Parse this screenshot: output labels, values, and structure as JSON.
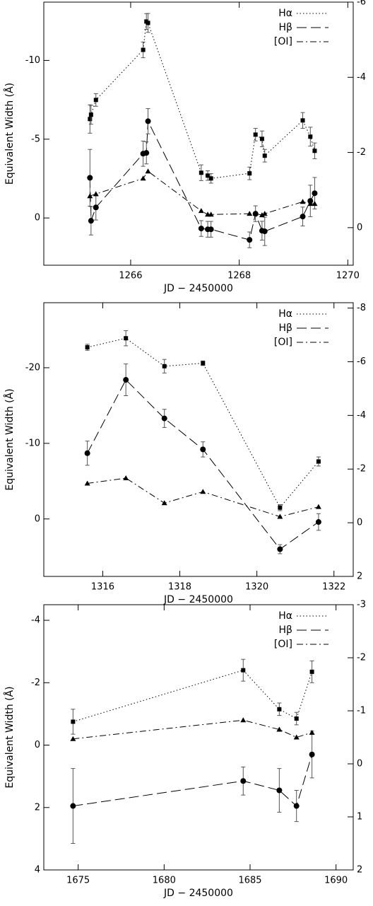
{
  "chart_data": [
    {
      "type": "scatter",
      "xlabel": "JD − 2450000",
      "ylabel": "Equivalent Width (Å)",
      "xlim": [
        1264.4,
        1270.1
      ],
      "xticks": [
        1266,
        1268,
        1270
      ],
      "ylim": [
        -13.7,
        3
      ],
      "y_inverted": true,
      "yticks": [
        -10,
        -5,
        0
      ],
      "y2lim": [
        -6,
        1
      ],
      "y2_inverted": true,
      "y2ticks": [
        -6,
        -4,
        -2,
        0
      ],
      "legend": "upper right",
      "series": [
        {
          "name": "Hα",
          "color": "#000000",
          "marker": "square",
          "line": "dotted",
          "x": [
            1265.25,
            1265.27,
            1265.36,
            1266.23,
            1266.29,
            1266.32,
            1267.3,
            1267.42,
            1267.48,
            1268.19,
            1268.3,
            1268.42,
            1268.47,
            1269.17,
            1269.31,
            1269.39
          ],
          "values": [
            -6.28,
            -6.55,
            -7.49,
            -10.67,
            -12.47,
            -12.38,
            -2.87,
            -2.69,
            -2.51,
            -2.83,
            -5.29,
            -5.02,
            -3.95,
            -6.19,
            -5.16,
            -4.26
          ],
          "errors": [
            0.9,
            0.6,
            0.4,
            0.5,
            0.5,
            0.6,
            0.5,
            0.3,
            0.3,
            0.4,
            0.4,
            0.5,
            0.4,
            0.5,
            0.6,
            0.5
          ]
        },
        {
          "name": "Hβ",
          "color": "#000000",
          "marker": "circle",
          "line": "dashed",
          "x": [
            1265.25,
            1265.27,
            1265.36,
            1266.23,
            1266.29,
            1266.32,
            1267.3,
            1267.42,
            1267.48,
            1268.19,
            1268.3,
            1268.42,
            1268.47,
            1269.17,
            1269.31,
            1269.39
          ],
          "values": [
            -2.55,
            0.18,
            -0.67,
            -4.08,
            -4.13,
            -6.14,
            0.67,
            0.72,
            0.72,
            1.39,
            -0.27,
            0.81,
            0.85,
            -0.09,
            -1.08,
            -1.57
          ],
          "errors": [
            1.8,
            0.9,
            0.8,
            0.8,
            0.7,
            0.8,
            0.5,
            0.5,
            0.5,
            0.5,
            0.5,
            0.6,
            0.9,
            0.6,
            1.0,
            1.0
          ]
        },
        {
          "name": "[OI]",
          "color": "#000000",
          "marker": "triangle",
          "line": "dashdot",
          "x": [
            1265.25,
            1265.36,
            1266.23,
            1266.32,
            1267.3,
            1267.42,
            1267.48,
            1268.19,
            1268.3,
            1268.42,
            1268.47,
            1269.17,
            1269.31,
            1269.39
          ],
          "values": [
            -1.39,
            -1.52,
            -2.51,
            -2.96,
            -0.45,
            -0.22,
            -0.22,
            -0.27,
            -0.27,
            -0.18,
            -0.27,
            -1.03,
            -0.9,
            -0.9
          ]
        }
      ]
    },
    {
      "type": "scatter",
      "xlabel": "JD − 2450000",
      "ylabel": "Equivalent Width (Å)",
      "xlim": [
        1314.47,
        1322.5
      ],
      "xticks": [
        1316,
        1318,
        1320,
        1322
      ],
      "ylim": [
        -28.6,
        7.6
      ],
      "y_inverted": true,
      "yticks": [
        -20,
        -10,
        0
      ],
      "y2lim": [
        -8.2,
        2
      ],
      "y2_inverted": true,
      "y2ticks": [
        -8,
        -6,
        -4,
        -2,
        0,
        2
      ],
      "legend": "upper right",
      "series": [
        {
          "name": "Hα",
          "color": "#000000",
          "marker": "square",
          "line": "dotted",
          "x": [
            1315.6,
            1316.6,
            1317.6,
            1318.6,
            1320.6,
            1321.6
          ],
          "values": [
            -22.7,
            -23.9,
            -20.2,
            -20.6,
            -1.5,
            -7.6
          ],
          "errors": [
            0.4,
            1.0,
            0.9,
            0.3,
            0.4,
            0.6
          ]
        },
        {
          "name": "Hβ",
          "color": "#000000",
          "marker": "circle",
          "line": "dashed",
          "x": [
            1315.6,
            1316.6,
            1317.6,
            1318.6,
            1320.6,
            1321.6
          ],
          "values": [
            -8.7,
            -18.4,
            -13.3,
            -9.2,
            4.0,
            0.4
          ],
          "errors": [
            1.6,
            2.1,
            1.2,
            1.0,
            0.6,
            1.1
          ]
        },
        {
          "name": "[OI]",
          "color": "#000000",
          "marker": "triangle",
          "line": "dashdot",
          "x": [
            1315.6,
            1316.6,
            1317.6,
            1318.6,
            1320.6,
            1321.6
          ],
          "values": [
            -4.7,
            -5.4,
            -2.1,
            -3.6,
            -0.3,
            -1.6
          ]
        }
      ]
    },
    {
      "type": "scatter",
      "xlabel": "JD − 2450000",
      "ylabel": "Equivalent Width (Å)",
      "xlim": [
        1673,
        1691
      ],
      "xticks": [
        1675,
        1680,
        1685,
        1690
      ],
      "ylim": [
        -4.5,
        4
      ],
      "y_inverted": true,
      "yticks": [
        -4,
        -2,
        0,
        2,
        4
      ],
      "y2lim": [
        -3,
        2
      ],
      "y2_inverted": true,
      "y2ticks": [
        -3,
        -2,
        -1,
        0,
        1,
        2
      ],
      "legend": "upper right",
      "series": [
        {
          "name": "Hα",
          "color": "#000000",
          "marker": "square",
          "line": "dotted",
          "x": [
            1674.7,
            1684.6,
            1686.7,
            1687.7,
            1688.6
          ],
          "values": [
            -0.75,
            -2.4,
            -1.15,
            -0.85,
            -2.35
          ],
          "errors": [
            0.4,
            0.35,
            0.2,
            0.2,
            0.35
          ]
        },
        {
          "name": "Hβ",
          "color": "#000000",
          "marker": "circle",
          "line": "dashed",
          "x": [
            1674.7,
            1684.6,
            1686.7,
            1687.7,
            1688.6
          ],
          "values": [
            1.95,
            1.15,
            1.45,
            1.95,
            0.3
          ],
          "errors": [
            1.2,
            0.45,
            0.7,
            0.5,
            0.75
          ]
        },
        {
          "name": "[OI]",
          "color": "#000000",
          "marker": "triangle",
          "line": "dashdot",
          "x": [
            1674.7,
            1684.6,
            1686.7,
            1687.7,
            1688.6
          ],
          "values": [
            -0.2,
            -0.8,
            -0.5,
            -0.25,
            -0.4
          ]
        }
      ]
    }
  ]
}
